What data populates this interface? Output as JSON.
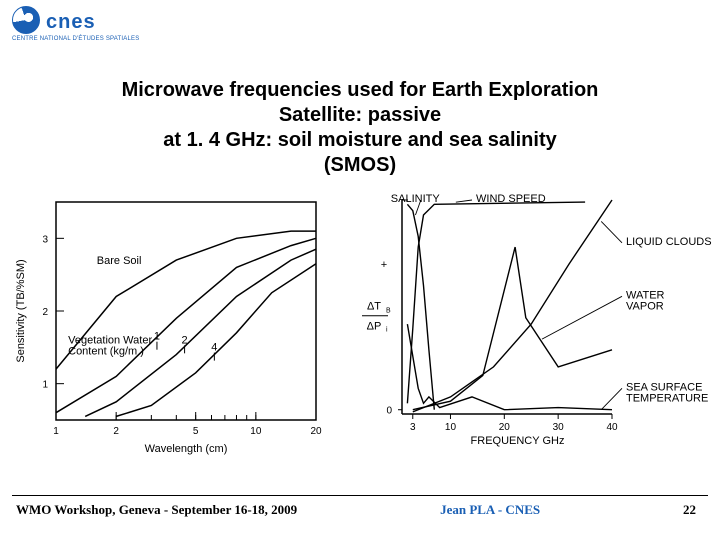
{
  "logo": {
    "name": "cnes",
    "sub": "CENTRE NATIONAL D'ÉTUDES SPATIALES"
  },
  "title": {
    "l1": "Microwave frequencies used for Earth Exploration",
    "l2": "Satellite: passive",
    "l3": "at 1. 4 GHz: soil moisture and sea salinity",
    "l4": "(SMOS)"
  },
  "left_chart": {
    "type": "line",
    "x_label": "Wavelength (cm)",
    "y_label": "Sensitivity (TB/%SM)",
    "x_scale": "log",
    "x_ticks": [
      1,
      2,
      5,
      10,
      20
    ],
    "y_ticks": [
      1,
      2,
      3
    ],
    "xlim": [
      1,
      20
    ],
    "ylim": [
      0.5,
      3.5
    ],
    "grid_color": "#000000",
    "line_color": "#000000",
    "line_width": 1.5,
    "bare_label": "Bare Soil",
    "veg_label_1": "Vegetation Water",
    "veg_label_2": "Content (kg/m )",
    "series_labels": [
      "1",
      "2",
      "4"
    ],
    "series": {
      "bare": [
        [
          1,
          1.2
        ],
        [
          2,
          2.2
        ],
        [
          4,
          2.7
        ],
        [
          8,
          3.0
        ],
        [
          15,
          3.1
        ],
        [
          20,
          3.1
        ]
      ],
      "1": [
        [
          1,
          0.6
        ],
        [
          2,
          1.1
        ],
        [
          4,
          1.9
        ],
        [
          8,
          2.6
        ],
        [
          15,
          2.9
        ],
        [
          20,
          3.0
        ]
      ],
      "2": [
        [
          1.4,
          0.55
        ],
        [
          2,
          0.75
        ],
        [
          4,
          1.4
        ],
        [
          8,
          2.2
        ],
        [
          15,
          2.7
        ],
        [
          20,
          2.85
        ]
      ],
      "4": [
        [
          2,
          0.55
        ],
        [
          3,
          0.7
        ],
        [
          5,
          1.15
        ],
        [
          8,
          1.7
        ],
        [
          12,
          2.25
        ],
        [
          20,
          2.65
        ]
      ]
    }
  },
  "right_chart": {
    "type": "line",
    "x_label": "FREQUENCY GHz",
    "y_label_top": "ΔT",
    "y_label_bot": "ΔP",
    "y_sub_b": "B",
    "y_sub_i": "i",
    "y_hline": "0",
    "y_plus": "+",
    "x_ticks": [
      3,
      10,
      20,
      30,
      40
    ],
    "xlim": [
      1,
      40
    ],
    "labels": {
      "salinity": "SALINITY",
      "wind": "WIND SPEED",
      "clouds": "LIQUID CLOUDS",
      "vapor": "WATER\nVAPOR",
      "sst": "SEA SURFACE\nTEMPERATURE"
    },
    "curves": {
      "salinity": [
        [
          2,
          0.98
        ],
        [
          3,
          0.95
        ],
        [
          4,
          0.83
        ],
        [
          5,
          0.6
        ],
        [
          6,
          0.3
        ],
        [
          7,
          0.02
        ]
      ],
      "wind": [
        [
          2,
          0.05
        ],
        [
          3,
          0.4
        ],
        [
          4,
          0.78
        ],
        [
          5,
          0.93
        ],
        [
          7,
          0.98
        ],
        [
          35,
          0.99
        ]
      ],
      "clouds": [
        [
          3,
          0.01
        ],
        [
          10,
          0.08
        ],
        [
          18,
          0.22
        ],
        [
          25,
          0.42
        ],
        [
          32,
          0.7
        ],
        [
          40,
          1.0
        ]
      ],
      "vapor": [
        [
          3,
          0.02
        ],
        [
          10,
          0.06
        ],
        [
          16,
          0.18
        ],
        [
          22,
          0.78
        ],
        [
          24,
          0.45
        ],
        [
          30,
          0.22
        ],
        [
          40,
          0.3
        ]
      ],
      "sst": [
        [
          2,
          0.42
        ],
        [
          4,
          0.12
        ],
        [
          5,
          0.05
        ],
        [
          6,
          0.08
        ],
        [
          8,
          0.03
        ],
        [
          14,
          0.08
        ],
        [
          20,
          0.02
        ],
        [
          30,
          0.03
        ],
        [
          40,
          0.02
        ]
      ]
    },
    "line_color": "#000000"
  },
  "footer": {
    "left": "WMO Workshop, Geneva - September 16-18, 2009",
    "center": "Jean PLA - CNES",
    "page": "22"
  },
  "colors": {
    "brand": "#1a5fb4",
    "text": "#000000",
    "bg": "#ffffff"
  }
}
